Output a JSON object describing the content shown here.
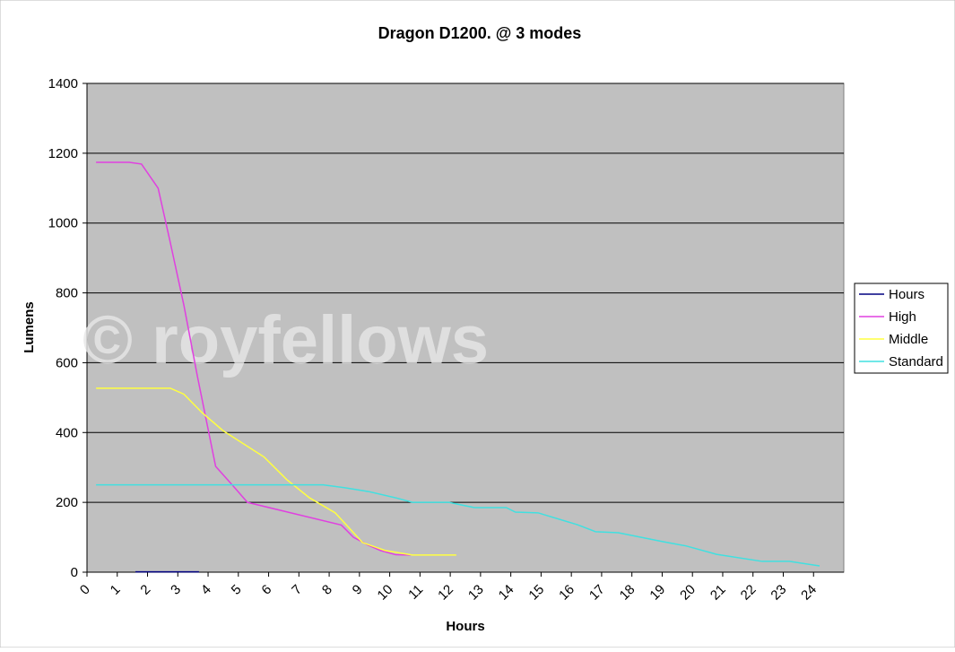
{
  "chart_data": {
    "type": "line",
    "title": "Dragon D1200. @ 3 modes",
    "x_label": "Hours",
    "y_label": "Lumens",
    "annotation": "© royfellows",
    "xlim": [
      0,
      25
    ],
    "xticks": [
      0,
      1,
      2,
      3,
      4,
      5,
      6,
      7,
      8,
      9,
      10,
      11,
      12,
      13,
      14,
      15,
      16,
      17,
      18,
      19,
      20,
      21,
      22,
      23,
      24
    ],
    "ylim": [
      0,
      1400
    ],
    "yticks": [
      0,
      200,
      400,
      600,
      800,
      1000,
      1200,
      1400
    ],
    "grid": true,
    "legend": "right",
    "series": [
      {
        "name": "Hours",
        "color": "#000080",
        "x": [
          1.6,
          3.7
        ],
        "values": [
          1,
          1
        ]
      },
      {
        "name": "High",
        "color": "#e040e0",
        "x": [
          0.3,
          1.4,
          1.8,
          2.35,
          2.75,
          3.2,
          3.65,
          4.25,
          4.9,
          5.3,
          8.4,
          8.8,
          9.3,
          9.7,
          10.2,
          10.7
        ],
        "values": [
          1174,
          1174,
          1169,
          1100,
          945,
          765,
          560,
          303,
          240,
          200,
          135,
          100,
          77,
          62,
          50,
          49
        ]
      },
      {
        "name": "Middle",
        "color": "#ffff40",
        "x": [
          0.3,
          2.75,
          3.2,
          3.8,
          4.5,
          5.85,
          6.6,
          7.35,
          8.2,
          8.7,
          9.1,
          9.85,
          10.75,
          12.2
        ],
        "values": [
          527,
          527,
          510,
          457,
          405,
          330,
          265,
          213,
          170,
          123,
          85,
          62,
          49,
          49
        ]
      },
      {
        "name": "Standard",
        "color": "#40e0e0",
        "x": [
          0.3,
          7.8,
          8.5,
          9.3,
          10.2,
          10.75,
          11.95,
          12.8,
          13.85,
          14.15,
          14.9,
          16.2,
          16.8,
          17.55,
          19.05,
          19.8,
          20.8,
          22.3,
          23.2,
          24.2
        ],
        "values": [
          250,
          250,
          242,
          231,
          213,
          200,
          200,
          185,
          185,
          172,
          170,
          136,
          116,
          113,
          87,
          75,
          51,
          31,
          31,
          18
        ]
      }
    ]
  }
}
